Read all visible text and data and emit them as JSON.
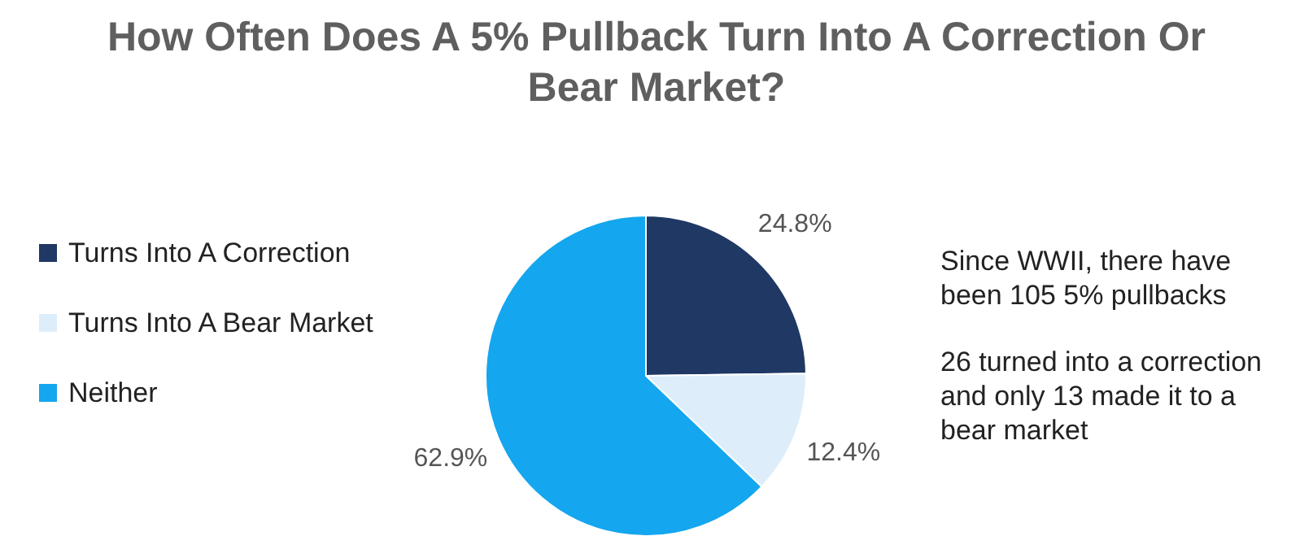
{
  "chart_data": {
    "type": "pie",
    "title": "How Often Does A 5% Pullback Turn Into A Correction Or Bear Market?",
    "categories": [
      "Turns Into A Correction",
      "Turns Into A Bear Market",
      "Neither"
    ],
    "values": [
      24.8,
      12.4,
      62.9
    ],
    "value_labels": [
      "24.8%",
      "12.4%",
      "62.9%"
    ],
    "colors": [
      "#1f3864",
      "#ddeefa",
      "#14a6ee"
    ],
    "legend": "left",
    "annotations": [
      "Since WWII, there have been 105 5% pullbacks",
      "26 turned into a correction and only 13 made it to a bear market"
    ]
  }
}
